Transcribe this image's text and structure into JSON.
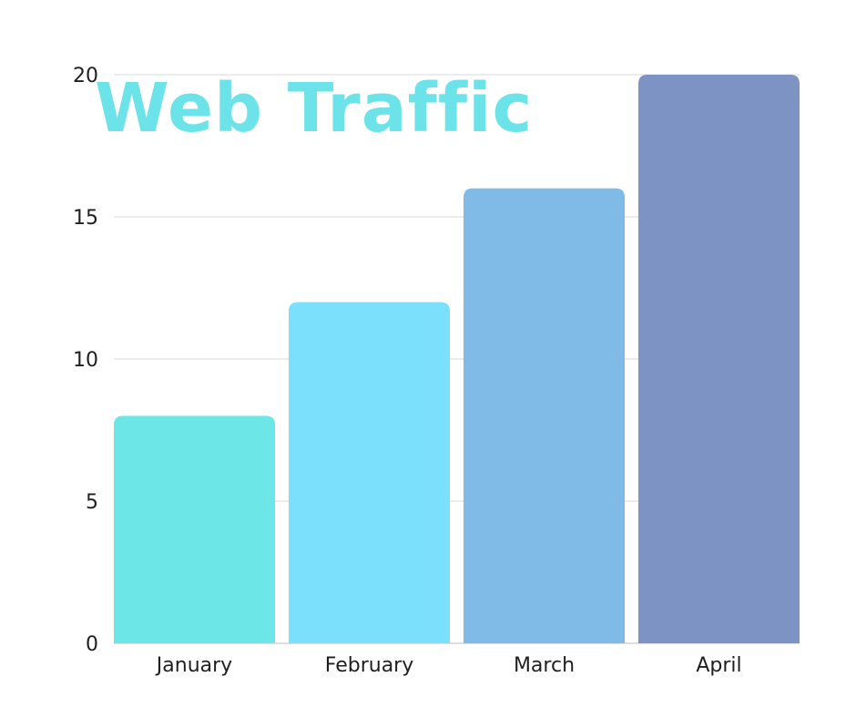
{
  "chart_data": {
    "type": "bar",
    "title": "Web Traffic",
    "categories": [
      "January",
      "February",
      "March",
      "April"
    ],
    "values": [
      8,
      12,
      16,
      20
    ],
    "bar_colors": [
      "#6de6e8",
      "#7ae0fc",
      "#80bbe8",
      "#7c93c3"
    ],
    "ylim": [
      0,
      20
    ],
    "yticks": [
      0,
      5,
      10,
      15,
      20
    ],
    "grid": true,
    "title_color": "#6ce3e8",
    "xlabel": "",
    "ylabel": ""
  }
}
